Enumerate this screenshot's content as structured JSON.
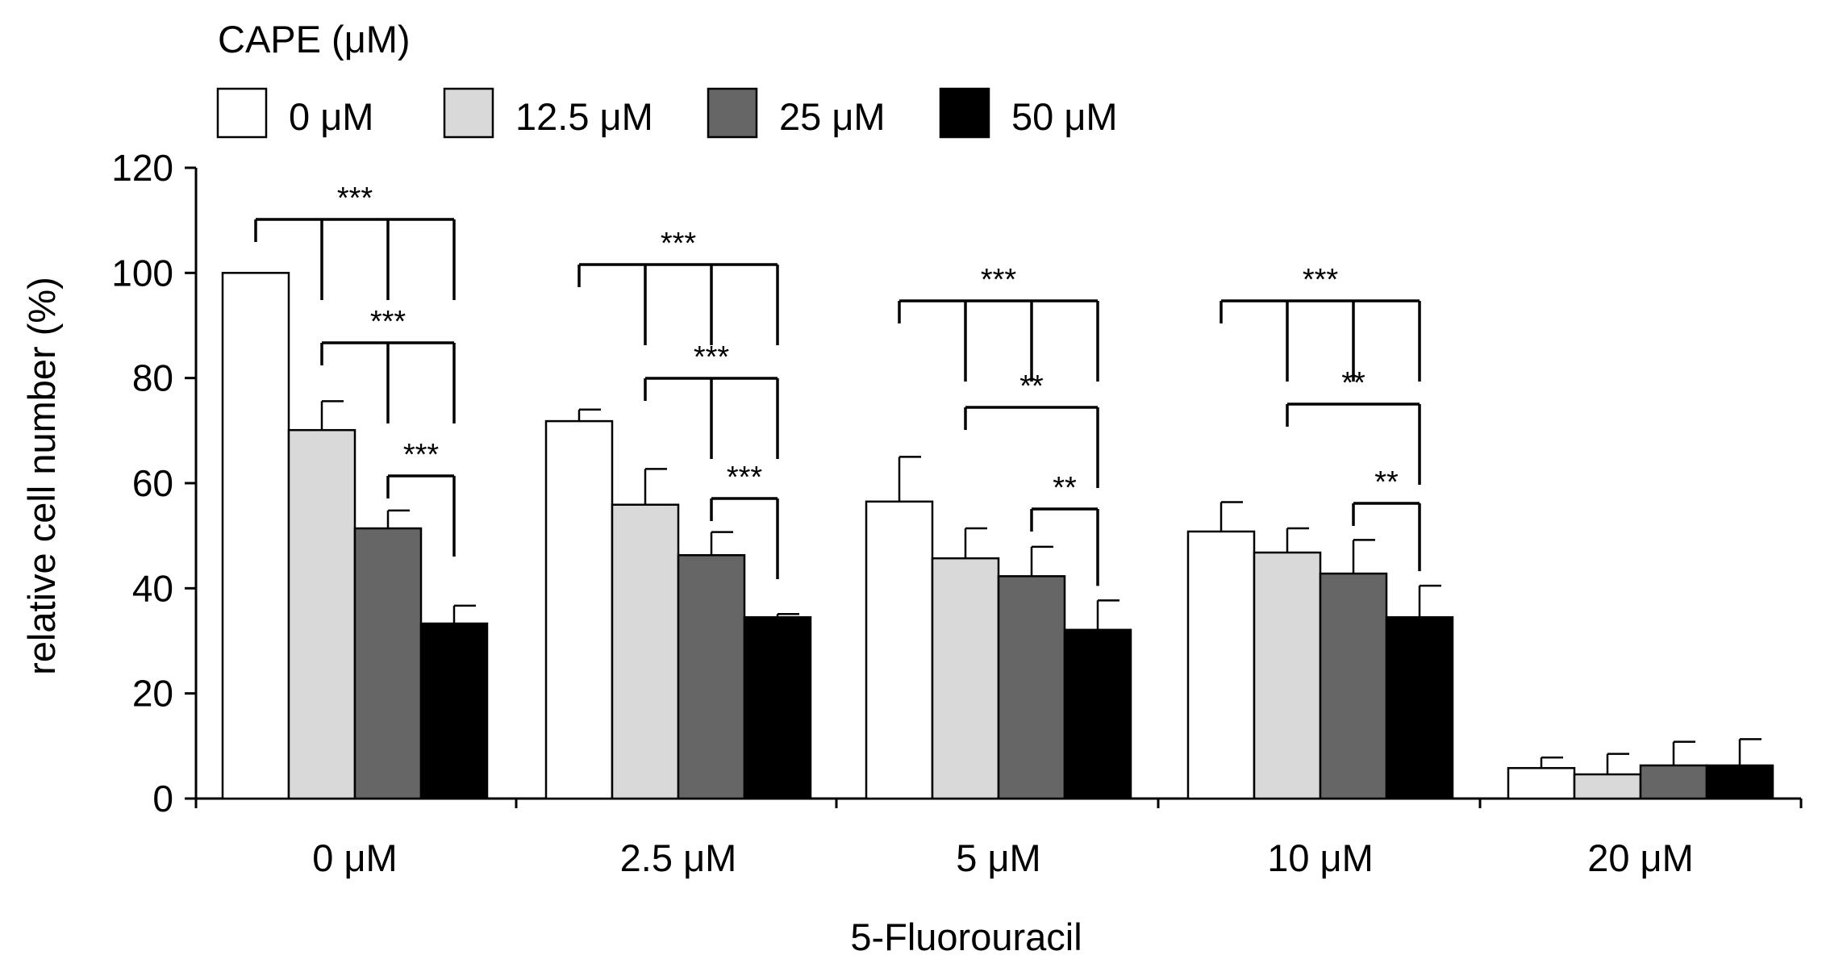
{
  "chart_data": {
    "type": "bar",
    "title": "",
    "xlabel": "5-Fluorouracil",
    "ylabel": "relative cell number (%)",
    "ylim": [
      0,
      120
    ],
    "yticks": [
      "0",
      "20",
      "40",
      "60",
      "80",
      "100",
      "120"
    ],
    "categories": [
      "0 μM",
      "2.5 μM",
      "5 μM",
      "10 μM",
      "20 μM"
    ],
    "legend": {
      "title": "CAPE (μM)",
      "placement": "top-left"
    },
    "series": [
      {
        "name": "0 μM",
        "color": "#ffffff",
        "values": [
          100,
          71.8,
          56.5,
          50.8,
          5.8
        ],
        "errors": [
          0,
          2.2,
          8.5,
          5.6,
          2.0
        ]
      },
      {
        "name": "12.5 μM",
        "color": "#d9d9d9",
        "values": [
          70.1,
          55.9,
          45.7,
          46.8,
          4.6
        ],
        "errors": [
          5.5,
          6.8,
          5.7,
          4.6,
          3.9
        ]
      },
      {
        "name": "25 μM",
        "color": "#666666",
        "values": [
          51.4,
          46.3,
          42.3,
          42.8,
          6.3
        ],
        "errors": [
          3.4,
          4.4,
          5.6,
          6.4,
          4.5
        ]
      },
      {
        "name": "50 μM",
        "color": "#000000",
        "values": [
          33.3,
          34.5,
          32.1,
          34.5,
          6.3
        ],
        "errors": [
          3.4,
          0.6,
          5.6,
          6.0,
          5.0
        ]
      }
    ],
    "significance": [
      {
        "group": 0,
        "label": "***",
        "pairs": [
          [
            0,
            1
          ],
          [
            0,
            2
          ],
          [
            0,
            3
          ]
        ]
      },
      {
        "group": 0,
        "label": "***",
        "pairs": [
          [
            1,
            2
          ],
          [
            1,
            3
          ]
        ]
      },
      {
        "group": 0,
        "label": "***",
        "pairs": [
          [
            2,
            3
          ]
        ]
      },
      {
        "group": 1,
        "label": "***",
        "pairs": [
          [
            0,
            1
          ],
          [
            0,
            2
          ],
          [
            0,
            3
          ]
        ]
      },
      {
        "group": 1,
        "label": "***",
        "pairs": [
          [
            1,
            2
          ],
          [
            1,
            3
          ]
        ]
      },
      {
        "group": 1,
        "label": "***",
        "pairs": [
          [
            2,
            3
          ]
        ]
      },
      {
        "group": 2,
        "label": "***",
        "pairs": [
          [
            0,
            1
          ],
          [
            0,
            2
          ],
          [
            0,
            3
          ]
        ]
      },
      {
        "group": 2,
        "label": "**",
        "pairs": [
          [
            1,
            3
          ]
        ]
      },
      {
        "group": 2,
        "label": "**",
        "pairs": [
          [
            2,
            3
          ]
        ]
      },
      {
        "group": 3,
        "label": "***",
        "pairs": [
          [
            0,
            1
          ],
          [
            0,
            2
          ],
          [
            0,
            3
          ]
        ]
      },
      {
        "group": 3,
        "label": "**",
        "pairs": [
          [
            1,
            3
          ]
        ]
      },
      {
        "group": 3,
        "label": "**",
        "pairs": [
          [
            2,
            3
          ]
        ]
      }
    ]
  }
}
